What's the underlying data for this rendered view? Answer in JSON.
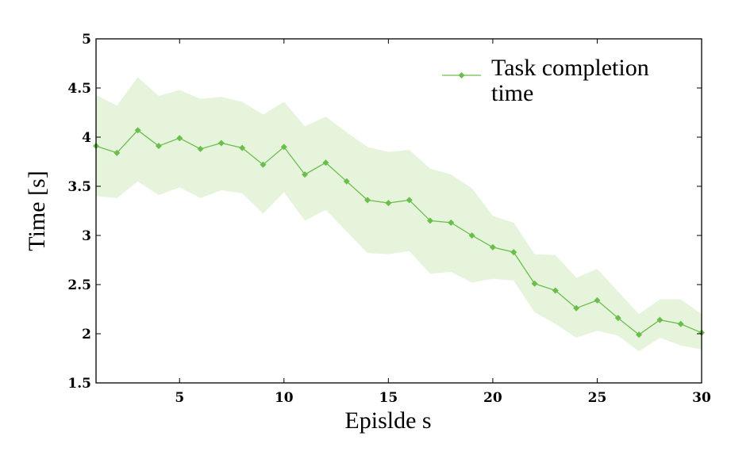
{
  "chart_data": {
    "type": "line",
    "title": "",
    "xlabel": "Epislde s",
    "ylabel": "Time [s]",
    "xlim": [
      1,
      30
    ],
    "ylim": [
      1.5,
      5
    ],
    "xticks": [
      "5",
      "10",
      "15",
      "20",
      "25",
      "30"
    ],
    "yticks": [
      "1.5",
      "2",
      "2.5",
      "3",
      "3.5",
      "4",
      "4.5",
      "5"
    ],
    "grid": false,
    "legend_position": "top-right",
    "colors": {
      "line": "#6abf4b",
      "band": "#e6f4dc"
    },
    "series": [
      {
        "name": "Task completion time",
        "x": [
          1,
          2,
          3,
          4,
          5,
          6,
          7,
          8,
          9,
          10,
          11,
          12,
          13,
          14,
          15,
          16,
          17,
          18,
          19,
          20,
          21,
          22,
          23,
          24,
          25,
          26,
          27,
          28,
          29,
          30
        ],
        "values": [
          3.91,
          3.84,
          4.07,
          3.91,
          3.99,
          3.88,
          3.94,
          3.89,
          3.72,
          3.9,
          3.62,
          3.74,
          3.55,
          3.36,
          3.33,
          3.36,
          3.15,
          3.13,
          3.0,
          2.88,
          2.83,
          2.51,
          2.44,
          2.26,
          2.34,
          2.16,
          1.99,
          2.14,
          2.1,
          2.01
        ],
        "upper": [
          4.43,
          4.32,
          4.61,
          4.42,
          4.48,
          4.39,
          4.41,
          4.36,
          4.23,
          4.36,
          4.11,
          4.21,
          4.05,
          3.9,
          3.85,
          3.87,
          3.68,
          3.62,
          3.48,
          3.2,
          3.13,
          2.81,
          2.8,
          2.57,
          2.66,
          2.43,
          2.2,
          2.35,
          2.35,
          2.2
        ],
        "lower": [
          3.4,
          3.38,
          3.55,
          3.41,
          3.49,
          3.38,
          3.46,
          3.43,
          3.22,
          3.44,
          3.15,
          3.26,
          3.04,
          2.82,
          2.81,
          2.84,
          2.61,
          2.63,
          2.52,
          2.56,
          2.54,
          2.22,
          2.1,
          1.96,
          2.03,
          1.98,
          1.82,
          1.96,
          1.88,
          1.84
        ]
      }
    ]
  },
  "legend": {
    "line1": "Task completion",
    "line2": "time"
  }
}
